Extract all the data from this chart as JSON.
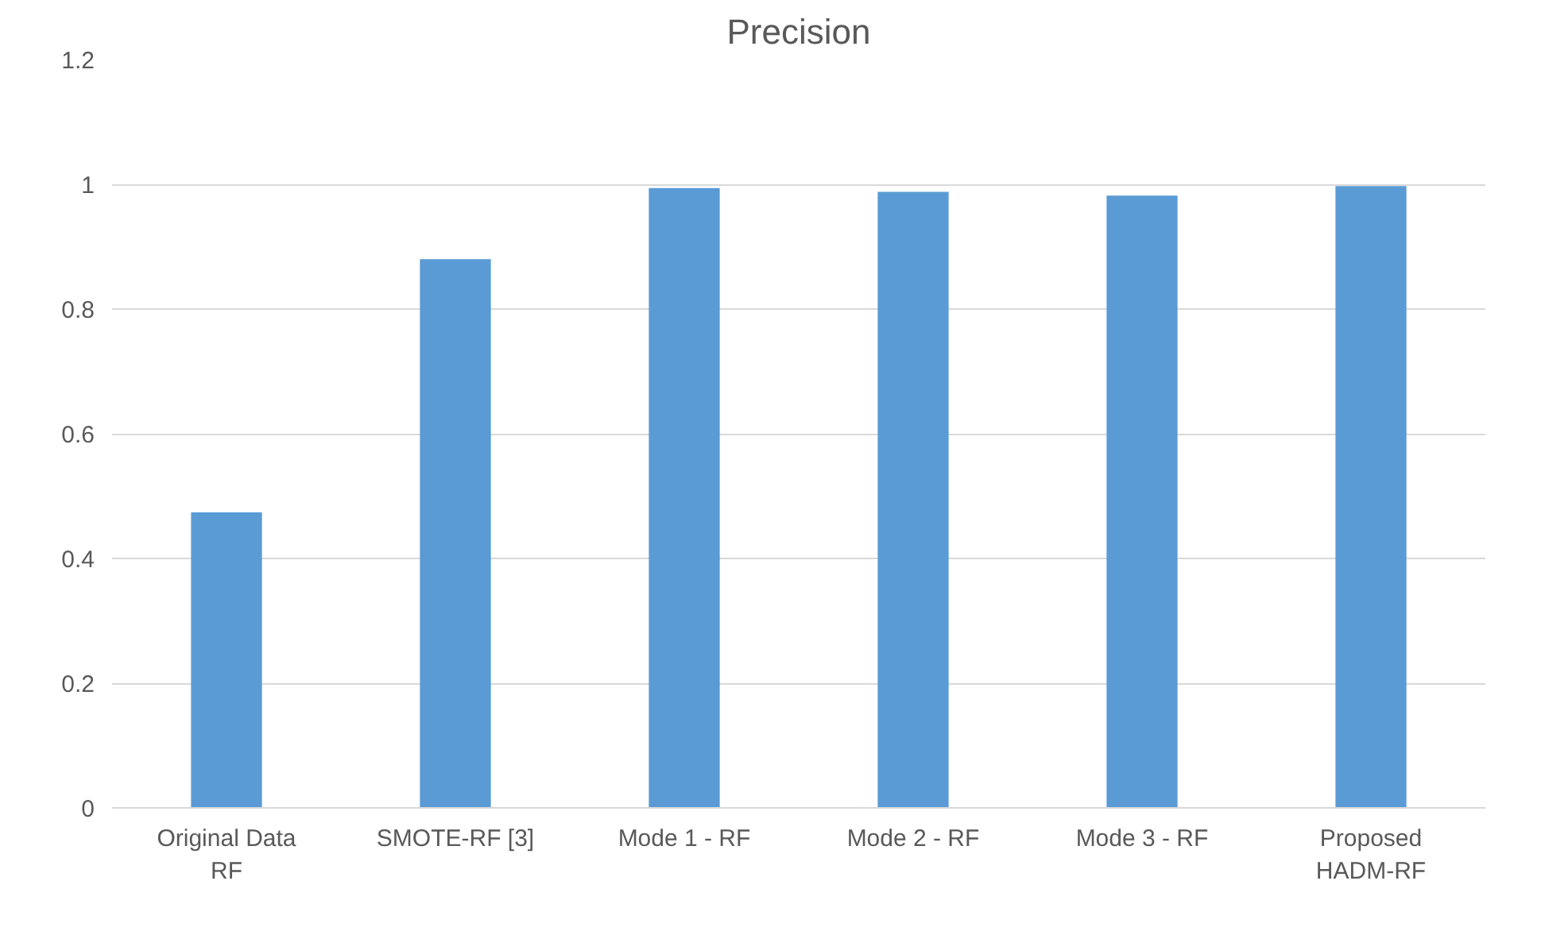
{
  "chart_data": {
    "type": "bar",
    "title": "Precision",
    "categories": [
      "Original Data RF",
      "SMOTE-RF [3]",
      "Mode 1 - RF",
      "Mode 2 - RF",
      "Mode 3 - RF",
      "Proposed HADM-RF"
    ],
    "values": [
      0.474,
      0.88,
      0.994,
      0.988,
      0.982,
      0.997
    ],
    "color": "#5b9bd5",
    "ylim": [
      0,
      1.2
    ],
    "yticks": [
      {
        "value": 0,
        "label": "0"
      },
      0.2,
      0.4,
      0.6,
      0.8,
      {
        "value": 1,
        "label": "1"
      },
      1.2
    ],
    "grid": "y"
  }
}
